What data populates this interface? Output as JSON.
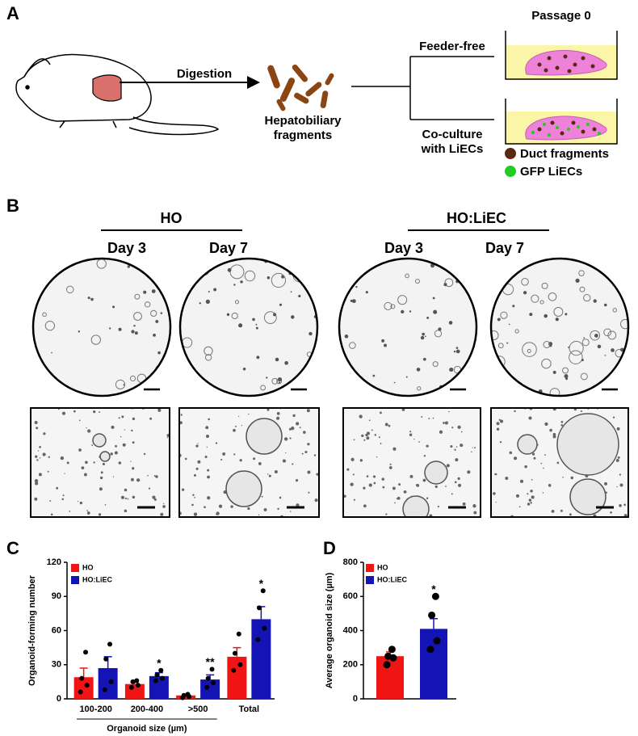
{
  "panel_a": {
    "label": "A",
    "digestion": "Digestion",
    "fragments_label": [
      "Hepatobiliary",
      "fragments"
    ],
    "feeder_free": "Feeder-free",
    "coculture": [
      "Co-culture",
      "with LiECs"
    ],
    "passage": "Passage 0",
    "legend": [
      "Duct fragments",
      "GFP LiECs"
    ]
  },
  "panel_b": {
    "label": "B",
    "groups": [
      {
        "name": "HO",
        "days": [
          "Day 3",
          "Day 7"
        ]
      },
      {
        "name": "HO:LiEC",
        "days": [
          "Day 3",
          "Day 7"
        ]
      }
    ]
  },
  "chart_data": [
    {
      "type": "bar",
      "panel": "C",
      "y_label": "Organoid-forming number",
      "x_label": "Organoid size (µm)",
      "categories": [
        "100-200",
        "200-400",
        ">500",
        "Total"
      ],
      "ylim": [
        0,
        120
      ],
      "yticks": [
        0,
        30,
        60,
        90,
        120
      ],
      "series": [
        {
          "name": "HO",
          "color": "#f01414",
          "values": [
            19,
            13,
            3,
            37
          ],
          "errors": [
            8,
            2,
            1,
            8
          ],
          "points": [
            [
              6,
              12,
              18,
              41
            ],
            [
              10,
              12,
              15,
              16
            ],
            [
              1,
              2,
              3,
              4
            ],
            [
              25,
              30,
              40,
              57
            ]
          ]
        },
        {
          "name": "HO:LiEC",
          "color": "#1414b4",
          "values": [
            27,
            20,
            17,
            70
          ],
          "errors": [
            10,
            3,
            4,
            11
          ],
          "points": [
            [
              8,
              15,
              35,
              48
            ],
            [
              16,
              18,
              21,
              25
            ],
            [
              10,
              14,
              18,
              26
            ],
            [
              52,
              62,
              80,
              95
            ]
          ],
          "annotations": [
            null,
            "*",
            "**",
            "*"
          ]
        }
      ]
    },
    {
      "type": "bar",
      "panel": "D",
      "y_label": "Average organoid size (µm)",
      "ylim": [
        0,
        800
      ],
      "yticks": [
        0,
        200,
        400,
        600,
        800
      ],
      "series": [
        {
          "name": "HO",
          "color": "#f01414",
          "values": [
            250
          ],
          "errors": [
            25
          ],
          "points": [
            [
              200,
              240,
              250,
              290
            ]
          ]
        },
        {
          "name": "HO:LiEC",
          "color": "#1414b4",
          "values": [
            410
          ],
          "errors": [
            60
          ],
          "points": [
            [
              290,
              340,
              490,
              600
            ]
          ],
          "annotations": [
            "*"
          ]
        }
      ]
    }
  ]
}
